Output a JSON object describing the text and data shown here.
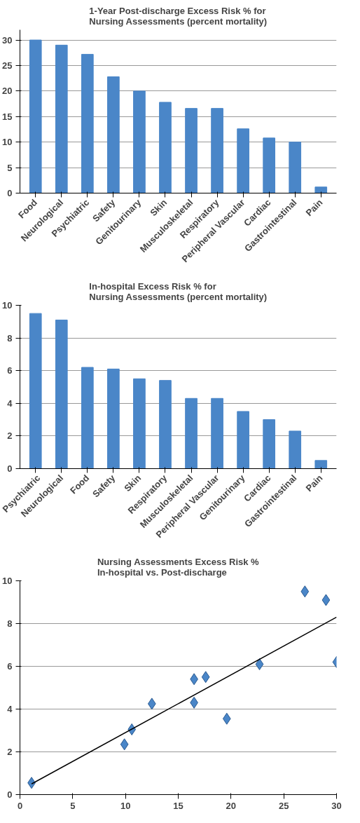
{
  "chart_data": [
    {
      "type": "bar",
      "title": "1-Year Post-discharge Excess Risk % for\nNursing Assessments (percent mortality)",
      "categories": [
        "Food",
        "Neurological",
        "Psychiatric",
        "Safety",
        "Genitourinary",
        "Skin",
        "Musculoskeletal",
        "Respiratory",
        "Peripheral Vascular",
        "Cardiac",
        "Gastrointestinal",
        "Pain"
      ],
      "values": [
        30,
        29,
        27.2,
        22.8,
        20,
        17.8,
        16.6,
        16.6,
        12.6,
        10.8,
        10,
        1.2
      ],
      "color": "#4a86c8",
      "ylim": [
        0,
        32
      ],
      "yticks": [
        0,
        5,
        10,
        15,
        20,
        25,
        30
      ],
      "grid": "y"
    },
    {
      "type": "bar",
      "title": "In-hospital Excess Risk % for\nNursing Assessments (percent mortality)",
      "categories": [
        "Psychiatric",
        "Neurological",
        "Food",
        "Safety",
        "Skin",
        "Respiratory",
        "Musculoskeletal",
        "Peripheral Vascular",
        "Genitourinary",
        "Cardiac",
        "Gastrointestinal",
        "Pain"
      ],
      "values": [
        9.5,
        9.1,
        6.2,
        6.1,
        5.5,
        5.4,
        4.3,
        4.3,
        3.5,
        3.0,
        2.3,
        0.5
      ],
      "color": "#4a86c8",
      "ylim": [
        0,
        10
      ],
      "yticks": [
        0,
        2,
        4,
        6,
        8,
        10
      ],
      "grid": "y"
    },
    {
      "type": "scatter",
      "title": "Nursing Assessments Excess Risk %\nIn-hospital vs. Post-discharge",
      "xlim": [
        0,
        30
      ],
      "ylim": [
        0,
        10
      ],
      "xticks": [
        0,
        5,
        10,
        15,
        20,
        25,
        30
      ],
      "yticks": [
        0,
        2,
        4,
        6,
        8,
        10
      ],
      "grid": "y",
      "series": [
        {
          "type": "scatter",
          "marker": "diamond",
          "color": "#4a86c8",
          "x": [
            1.1,
            9.9,
            10.6,
            12.5,
            16.5,
            16.5,
            17.6,
            19.6,
            22.7,
            27,
            29,
            30
          ],
          "values": [
            0.55,
            2.35,
            3.05,
            4.25,
            5.4,
            4.3,
            5.5,
            3.55,
            6.1,
            9.5,
            9.1,
            6.2
          ]
        },
        {
          "type": "line",
          "marker": "none",
          "color": "#000000",
          "x": [
            1.1,
            30
          ],
          "values": [
            0.5,
            8.3
          ]
        }
      ]
    }
  ]
}
